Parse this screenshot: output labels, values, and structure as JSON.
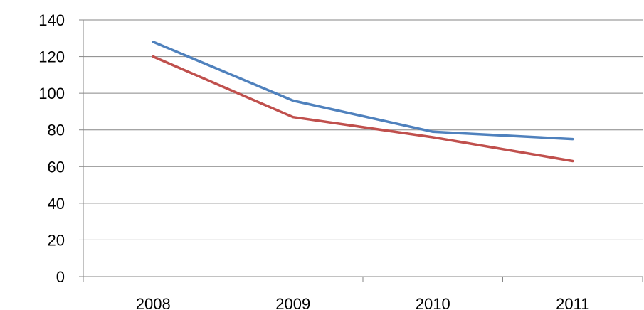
{
  "chart_data": {
    "type": "line",
    "title": "",
    "xlabel": "",
    "ylabel": "",
    "categories": [
      "2008",
      "2009",
      "2010",
      "2011"
    ],
    "ylim": [
      0,
      140
    ],
    "yticks": [
      0,
      20,
      40,
      60,
      80,
      100,
      120,
      140
    ],
    "grid": true,
    "legend": "none",
    "series": [
      {
        "color": "#4F81BD",
        "values": [
          128,
          96,
          79,
          75
        ]
      },
      {
        "color": "#C0504D",
        "values": [
          120,
          87,
          76,
          63
        ]
      }
    ]
  }
}
